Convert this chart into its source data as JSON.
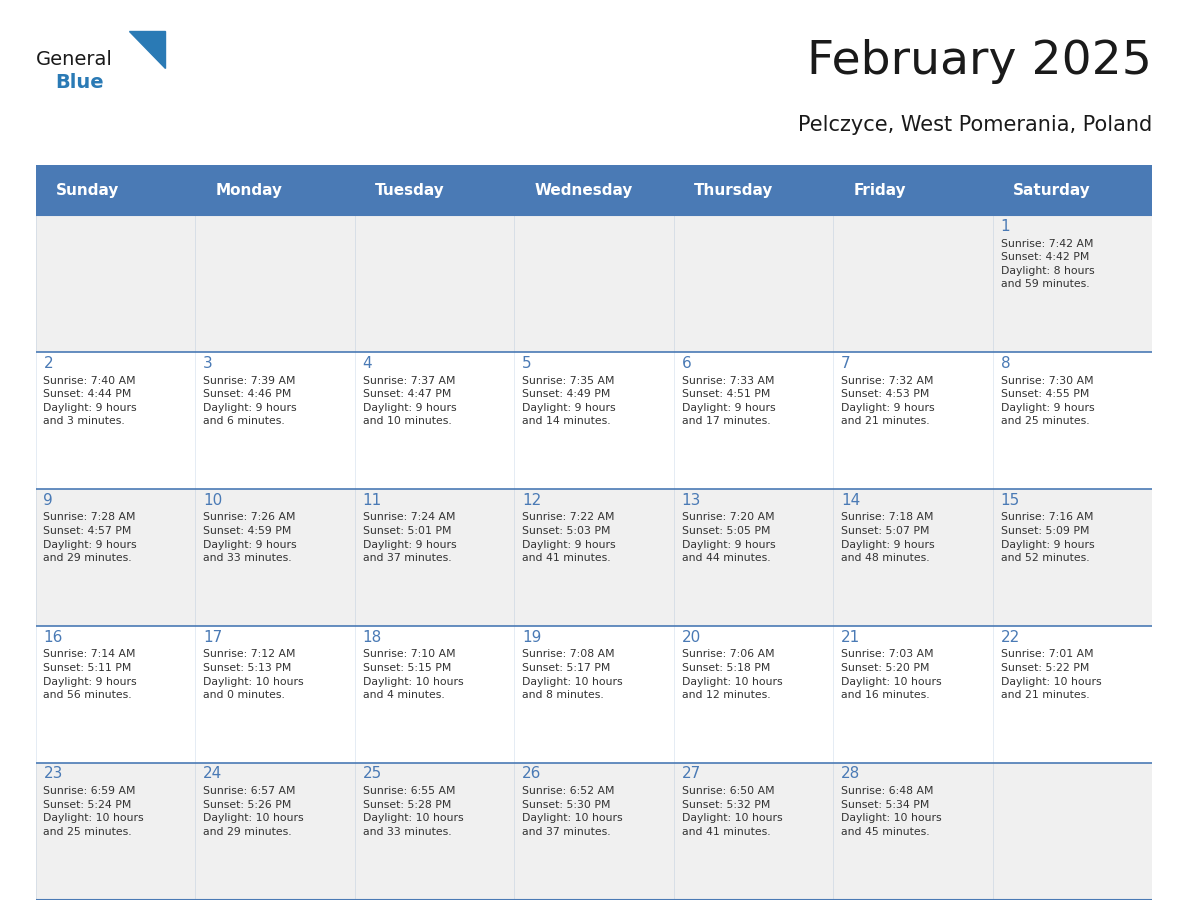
{
  "title": "February 2025",
  "subtitle": "Pelczyce, West Pomerania, Poland",
  "days_of_week": [
    "Sunday",
    "Monday",
    "Tuesday",
    "Wednesday",
    "Thursday",
    "Friday",
    "Saturday"
  ],
  "header_bg": "#4a7ab5",
  "header_text": "#ffffff",
  "row_bg_even": "#f0f0f0",
  "row_bg_odd": "#ffffff",
  "border_color": "#4a7ab5",
  "text_color": "#333333",
  "day_num_color": "#4a7ab5",
  "title_color": "#1a1a1a",
  "subtitle_color": "#1a1a1a",
  "logo_general_color": "#1a1a1a",
  "logo_blue_color": "#2a7ab5",
  "calendar_data": [
    [
      null,
      null,
      null,
      null,
      null,
      null,
      {
        "day": 1,
        "sunrise": "7:42 AM",
        "sunset": "4:42 PM",
        "daylight": "8 hours\nand 59 minutes."
      }
    ],
    [
      {
        "day": 2,
        "sunrise": "7:40 AM",
        "sunset": "4:44 PM",
        "daylight": "9 hours\nand 3 minutes."
      },
      {
        "day": 3,
        "sunrise": "7:39 AM",
        "sunset": "4:46 PM",
        "daylight": "9 hours\nand 6 minutes."
      },
      {
        "day": 4,
        "sunrise": "7:37 AM",
        "sunset": "4:47 PM",
        "daylight": "9 hours\nand 10 minutes."
      },
      {
        "day": 5,
        "sunrise": "7:35 AM",
        "sunset": "4:49 PM",
        "daylight": "9 hours\nand 14 minutes."
      },
      {
        "day": 6,
        "sunrise": "7:33 AM",
        "sunset": "4:51 PM",
        "daylight": "9 hours\nand 17 minutes."
      },
      {
        "day": 7,
        "sunrise": "7:32 AM",
        "sunset": "4:53 PM",
        "daylight": "9 hours\nand 21 minutes."
      },
      {
        "day": 8,
        "sunrise": "7:30 AM",
        "sunset": "4:55 PM",
        "daylight": "9 hours\nand 25 minutes."
      }
    ],
    [
      {
        "day": 9,
        "sunrise": "7:28 AM",
        "sunset": "4:57 PM",
        "daylight": "9 hours\nand 29 minutes."
      },
      {
        "day": 10,
        "sunrise": "7:26 AM",
        "sunset": "4:59 PM",
        "daylight": "9 hours\nand 33 minutes."
      },
      {
        "day": 11,
        "sunrise": "7:24 AM",
        "sunset": "5:01 PM",
        "daylight": "9 hours\nand 37 minutes."
      },
      {
        "day": 12,
        "sunrise": "7:22 AM",
        "sunset": "5:03 PM",
        "daylight": "9 hours\nand 41 minutes."
      },
      {
        "day": 13,
        "sunrise": "7:20 AM",
        "sunset": "5:05 PM",
        "daylight": "9 hours\nand 44 minutes."
      },
      {
        "day": 14,
        "sunrise": "7:18 AM",
        "sunset": "5:07 PM",
        "daylight": "9 hours\nand 48 minutes."
      },
      {
        "day": 15,
        "sunrise": "7:16 AM",
        "sunset": "5:09 PM",
        "daylight": "9 hours\nand 52 minutes."
      }
    ],
    [
      {
        "day": 16,
        "sunrise": "7:14 AM",
        "sunset": "5:11 PM",
        "daylight": "9 hours\nand 56 minutes."
      },
      {
        "day": 17,
        "sunrise": "7:12 AM",
        "sunset": "5:13 PM",
        "daylight": "10 hours\nand 0 minutes."
      },
      {
        "day": 18,
        "sunrise": "7:10 AM",
        "sunset": "5:15 PM",
        "daylight": "10 hours\nand 4 minutes."
      },
      {
        "day": 19,
        "sunrise": "7:08 AM",
        "sunset": "5:17 PM",
        "daylight": "10 hours\nand 8 minutes."
      },
      {
        "day": 20,
        "sunrise": "7:06 AM",
        "sunset": "5:18 PM",
        "daylight": "10 hours\nand 12 minutes."
      },
      {
        "day": 21,
        "sunrise": "7:03 AM",
        "sunset": "5:20 PM",
        "daylight": "10 hours\nand 16 minutes."
      },
      {
        "day": 22,
        "sunrise": "7:01 AM",
        "sunset": "5:22 PM",
        "daylight": "10 hours\nand 21 minutes."
      }
    ],
    [
      {
        "day": 23,
        "sunrise": "6:59 AM",
        "sunset": "5:24 PM",
        "daylight": "10 hours\nand 25 minutes."
      },
      {
        "day": 24,
        "sunrise": "6:57 AM",
        "sunset": "5:26 PM",
        "daylight": "10 hours\nand 29 minutes."
      },
      {
        "day": 25,
        "sunrise": "6:55 AM",
        "sunset": "5:28 PM",
        "daylight": "10 hours\nand 33 minutes."
      },
      {
        "day": 26,
        "sunrise": "6:52 AM",
        "sunset": "5:30 PM",
        "daylight": "10 hours\nand 37 minutes."
      },
      {
        "day": 27,
        "sunrise": "6:50 AM",
        "sunset": "5:32 PM",
        "daylight": "10 hours\nand 41 minutes."
      },
      {
        "day": 28,
        "sunrise": "6:48 AM",
        "sunset": "5:34 PM",
        "daylight": "10 hours\nand 45 minutes."
      },
      null
    ]
  ]
}
